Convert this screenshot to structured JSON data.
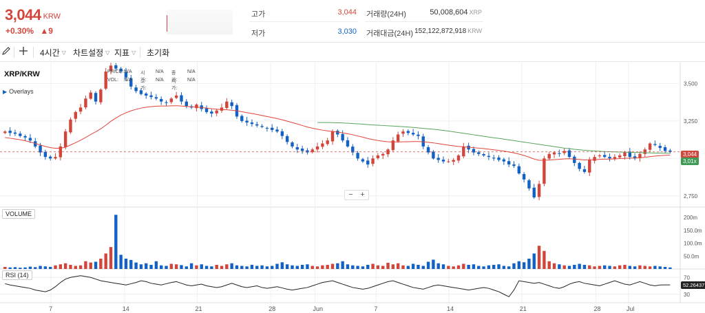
{
  "ticker": {
    "price": "3,044",
    "unit": "KRW",
    "change_pct": "+0.30%",
    "change_arrow": "▲",
    "change_abs": "9",
    "high_label": "고가",
    "high_value": "3,044",
    "low_label": "저가",
    "low_value": "3,030",
    "volume_label": "거래량(24H)",
    "volume_value": "50,008,604",
    "volume_unit": "XRP",
    "amount_label": "거래대금(24H)",
    "amount_value": "152,122,872,918",
    "amount_unit": "KRW"
  },
  "toolbar": {
    "pencil_icon": "pencil-icon",
    "crosshair_icon": "crosshair-icon",
    "interval_label": "4시간",
    "settings_label": "차트설정",
    "indicator_label": "지표",
    "reset_label": "초기화"
  },
  "chart_header": {
    "pair": "XRP/KRW",
    "overlays_label": "Overlays",
    "legend": [
      [
        "PRICE:",
        "N/A",
        "시가:",
        "N/A",
        "종가:",
        "N/A"
      ],
      [
        "VOL:",
        "N/A",
        "고가:",
        "N/A",
        "저가:",
        "N/A"
      ]
    ]
  },
  "zoom": {
    "minus": "−",
    "plus": "+"
  },
  "panes": {
    "volume_label": "VOLUME",
    "rsi_label": "RSI (14)"
  },
  "badges": {
    "last_price": "3,044",
    "ma_value": "3,01x",
    "rsi_value": "52.26437"
  },
  "colors": {
    "up": "#d1453b",
    "down": "#1261c4",
    "ma_short": "#e0443a",
    "ma_long": "#56a35a",
    "rsi_line": "#222222"
  },
  "chart_data": [
    {
      "type": "candlestick",
      "title": "XRP/KRW",
      "yticks": [
        2750,
        3000,
        3250,
        3500
      ],
      "ytick_labels": [
        "2,750",
        "3,000",
        "3,250",
        "3,500"
      ],
      "ylim": [
        2680,
        3640
      ],
      "x_labels": [
        "7",
        "14",
        "21",
        "28",
        "Jun",
        "7",
        "14",
        "21",
        "28",
        "Jul"
      ],
      "close": [
        3180,
        3170,
        3165,
        3150,
        3140,
        3120,
        3080,
        3040,
        3010,
        3000,
        3010,
        3080,
        3180,
        3260,
        3310,
        3340,
        3400,
        3440,
        3380,
        3460,
        3580,
        3620,
        3600,
        3580,
        3540,
        3480,
        3450,
        3430,
        3420,
        3410,
        3400,
        3380,
        3370,
        3400,
        3420,
        3380,
        3350,
        3340,
        3360,
        3330,
        3310,
        3300,
        3320,
        3340,
        3380,
        3350,
        3280,
        3250,
        3240,
        3230,
        3220,
        3210,
        3200,
        3190,
        3180,
        3150,
        3110,
        3080,
        3060,
        3050,
        3040,
        3060,
        3080,
        3100,
        3120,
        3180,
        3160,
        3120,
        3080,
        3040,
        3000,
        2980,
        2960,
        3000,
        3020,
        3030,
        3060,
        3120,
        3160,
        3180,
        3170,
        3160,
        3150,
        3080,
        3040,
        3000,
        2990,
        2980,
        2980,
        2990,
        3020,
        3080,
        3060,
        3040,
        3030,
        3020,
        3010,
        3000,
        2990,
        2980,
        2960,
        2950,
        2900,
        2860,
        2800,
        2740,
        2830,
        3000,
        3030,
        3040,
        3030,
        3050,
        3010,
        2970,
        2930,
        2910,
        2990,
        3010,
        3020,
        3010,
        3000,
        3010,
        3020,
        3040,
        3010,
        3000,
        3030,
        3060,
        3100,
        3090,
        3070,
        3050,
        3044
      ],
      "ma_short": [
        3140,
        3135,
        3130,
        3125,
        3118,
        3110,
        3100,
        3090,
        3080,
        3072,
        3068,
        3068,
        3075,
        3090,
        3105,
        3122,
        3140,
        3160,
        3178,
        3198,
        3222,
        3248,
        3270,
        3290,
        3305,
        3318,
        3328,
        3336,
        3342,
        3346,
        3349,
        3350,
        3350,
        3351,
        3352,
        3350,
        3348,
        3345,
        3343,
        3340,
        3336,
        3332,
        3329,
        3326,
        3325,
        3322,
        3318,
        3312,
        3306,
        3300,
        3294,
        3287,
        3280,
        3273,
        3266,
        3258,
        3249,
        3240,
        3230,
        3220,
        3210,
        3202,
        3195,
        3189,
        3184,
        3180,
        3176,
        3171,
        3165,
        3158,
        3150,
        3142,
        3133,
        3126,
        3120,
        3115,
        3111,
        3110,
        3110,
        3111,
        3112,
        3113,
        3113,
        3111,
        3108,
        3104,
        3099,
        3094,
        3089,
        3084,
        3080,
        3078,
        3075,
        3072,
        3069,
        3066,
        3062,
        3058,
        3054,
        3049,
        3043,
        3037,
        3029,
        3020,
        3009,
        2996,
        2988,
        2988,
        2990,
        2992,
        2994,
        2997,
        2998,
        2996,
        2993,
        2990,
        2991,
        2992,
        2994,
        2995,
        2996,
        2997,
        2999,
        3001,
        3002,
        3003,
        3005,
        3008,
        3012,
        3016,
        3019,
        3021,
        3023
      ],
      "ma_long_start_index": 62,
      "ma_long": [
        3240,
        3240,
        3240,
        3239,
        3238,
        3237,
        3235,
        3233,
        3231,
        3229,
        3226,
        3224,
        3222,
        3220,
        3218,
        3216,
        3214,
        3212,
        3210,
        3207,
        3204,
        3201,
        3198,
        3195,
        3191,
        3187,
        3183,
        3178,
        3173,
        3168,
        3163,
        3158,
        3153,
        3148,
        3143,
        3138,
        3134,
        3129,
        3124,
        3119,
        3114,
        3109,
        3104,
        3099,
        3094,
        3089,
        3084,
        3079,
        3074,
        3069,
        3065,
        3061,
        3058,
        3055,
        3052,
        3050,
        3048,
        3046,
        3045,
        3044,
        3043,
        3042,
        3041,
        3040,
        3039,
        3038,
        3037,
        3036,
        3036,
        3035,
        3035
      ]
    },
    {
      "type": "bar",
      "title": "VOLUME",
      "yticks": [
        50,
        100,
        150,
        200
      ],
      "ytick_labels": [
        "50.0m",
        "100.0m",
        "150.0m",
        "200m"
      ],
      "ylim": [
        0,
        240
      ],
      "values": [
        8,
        6,
        7,
        5,
        6,
        9,
        7,
        12,
        10,
        8,
        14,
        18,
        22,
        16,
        12,
        14,
        30,
        25,
        28,
        40,
        60,
        85,
        210,
        55,
        40,
        35,
        25,
        18,
        22,
        16,
        30,
        14,
        12,
        20,
        18,
        15,
        10,
        22,
        14,
        18,
        12,
        10,
        16,
        12,
        18,
        22,
        14,
        12,
        10,
        16,
        12,
        14,
        10,
        12,
        20,
        26,
        18,
        14,
        12,
        16,
        18,
        12,
        10,
        14,
        16,
        20,
        22,
        30,
        18,
        14,
        12,
        10,
        16,
        20,
        14,
        12,
        24,
        18,
        22,
        14,
        12,
        20,
        16,
        12,
        28,
        36,
        22,
        18,
        12,
        10,
        14,
        20,
        16,
        18,
        12,
        10,
        14,
        16,
        18,
        12,
        10,
        22,
        30,
        26,
        40,
        60,
        90,
        70,
        30,
        22,
        18,
        14,
        12,
        16,
        20,
        16,
        14,
        10,
        12,
        14,
        12,
        10,
        14,
        16,
        12,
        10,
        14,
        12,
        10,
        12,
        10,
        8,
        6
      ]
    },
    {
      "type": "line",
      "title": "RSI (14)",
      "yticks": [
        30,
        70
      ],
      "ytick_labels": [
        "30",
        "70"
      ],
      "ylim": [
        10,
        90
      ],
      "values": [
        55,
        52,
        50,
        48,
        46,
        44,
        40,
        38,
        36,
        40,
        48,
        58,
        66,
        70,
        72,
        74,
        72,
        70,
        66,
        62,
        60,
        58,
        56,
        54,
        52,
        55,
        58,
        62,
        60,
        56,
        54,
        52,
        55,
        58,
        60,
        56,
        52,
        50,
        52,
        54,
        50,
        48,
        46,
        48,
        52,
        56,
        52,
        48,
        46,
        48,
        50,
        46,
        44,
        46,
        48,
        45,
        42,
        40,
        42,
        44,
        46,
        50,
        54,
        58,
        60,
        62,
        58,
        54,
        50,
        46,
        44,
        42,
        44,
        48,
        52,
        56,
        60,
        62,
        58,
        54,
        50,
        46,
        44,
        42,
        46,
        50,
        52,
        50,
        48,
        46,
        44,
        42,
        40,
        42,
        44,
        46,
        44,
        40,
        36,
        30,
        24,
        40,
        62,
        60,
        58,
        56,
        58,
        54,
        50,
        46,
        44,
        48,
        54,
        58,
        60,
        56,
        54,
        52,
        50,
        54,
        58,
        62,
        58,
        54,
        52,
        56,
        60,
        56,
        52,
        50,
        52,
        52.26437,
        52.26437
      ]
    }
  ]
}
